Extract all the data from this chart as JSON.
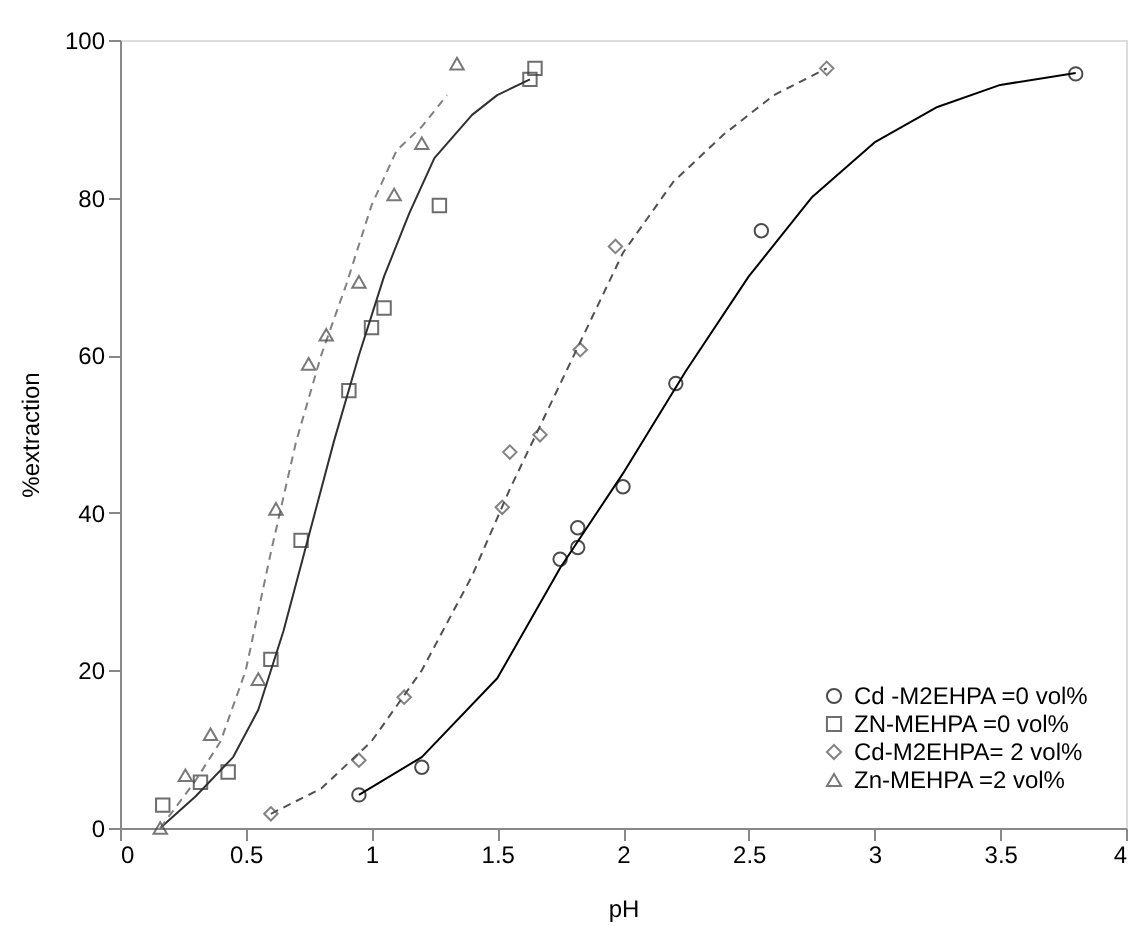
{
  "chart_data": {
    "type": "scatter",
    "xlabel": "pH",
    "ylabel": "%extraction",
    "xlim": [
      0,
      4
    ],
    "ylim": [
      0,
      100
    ],
    "xticks": [
      0,
      0.5,
      1,
      1.5,
      2,
      2.5,
      3,
      3.5,
      4
    ],
    "yticks": [
      0,
      20,
      40,
      60,
      80,
      100
    ],
    "grid": false,
    "legend": "bottom right",
    "series": [
      {
        "name": "Cd -M2EHPA =0 vol%",
        "marker": "circle",
        "color": "#000000",
        "x": [
          0.95,
          1.2,
          1.75,
          1.82,
          1.82,
          2.0,
          2.21,
          2.55,
          3.8
        ],
        "values": [
          4.2,
          7.7,
          34.1,
          35.6,
          38.1,
          43.3,
          56.4,
          75.8,
          95.7
        ]
      },
      {
        "name": "ZN-MEHPA =0 vol%",
        "marker": "square",
        "color": "#303030",
        "x": [
          0.17,
          0.32,
          0.43,
          0.6,
          0.72,
          0.91,
          1.0,
          1.05,
          1.27,
          1.63,
          1.65
        ],
        "values": [
          2.9,
          5.8,
          7.1,
          21.4,
          36.5,
          55.5,
          63.5,
          66,
          79,
          95,
          96.4
        ]
      },
      {
        "name": "Cd-M2EHPA= 2 vol%",
        "marker": "diamond",
        "color": "#505050",
        "x": [
          0.6,
          0.95,
          1.13,
          1.52,
          1.55,
          1.67,
          1.83,
          1.97,
          2.81
        ],
        "values": [
          1.8,
          8.6,
          16.6,
          40.7,
          47.7,
          49.9,
          60.7,
          73.8,
          96.4
        ]
      },
      {
        "name": "Zn-MEHPA =2 vol%",
        "marker": "triangle",
        "color": "#404040",
        "x": [
          0.16,
          0.26,
          0.36,
          0.55,
          0.62,
          0.75,
          0.82,
          0.95,
          1.09,
          1.2,
          1.34
        ],
        "values": [
          0,
          6.7,
          11.9,
          18.9,
          40.5,
          58.9,
          62.6,
          69.3,
          80.4,
          86.9,
          97
        ]
      },
      {
        "type": "line",
        "line_style": "solid",
        "color": "#000000",
        "x": [
          0.95,
          1.2,
          1.5,
          1.75,
          2.0,
          2.25,
          2.5,
          2.75,
          3.0,
          3.25,
          3.5,
          3.8
        ],
        "values": [
          4.2,
          9,
          19,
          33,
          45,
          58,
          70,
          80,
          87,
          91.5,
          94.3,
          95.8
        ]
      },
      {
        "type": "line",
        "line_style": "solid",
        "color": "#303030",
        "x": [
          0.16,
          0.3,
          0.45,
          0.55,
          0.65,
          0.75,
          0.85,
          0.95,
          1.05,
          1.15,
          1.25,
          1.4,
          1.5,
          1.63
        ],
        "values": [
          0,
          4,
          9,
          15,
          25,
          37,
          49,
          60,
          70,
          78,
          85,
          90.5,
          93,
          95
        ]
      },
      {
        "type": "line",
        "line_style": "dashed",
        "color": "#505050",
        "x": [
          0.6,
          0.8,
          1.0,
          1.2,
          1.4,
          1.55,
          1.7,
          1.85,
          2.0,
          2.2,
          2.4,
          2.6,
          2.81
        ],
        "values": [
          1.8,
          5,
          11,
          20,
          32,
          43,
          53,
          63,
          73,
          82,
          88,
          93,
          96.4
        ]
      },
      {
        "type": "line",
        "line_style": "dashed",
        "color": "#808080",
        "x": [
          0.16,
          0.3,
          0.4,
          0.5,
          0.6,
          0.7,
          0.8,
          0.9,
          1.0,
          1.1,
          1.2,
          1.3
        ],
        "values": [
          0,
          6,
          11,
          20,
          35,
          49,
          60,
          69,
          79,
          86,
          89,
          93
        ]
      }
    ]
  }
}
